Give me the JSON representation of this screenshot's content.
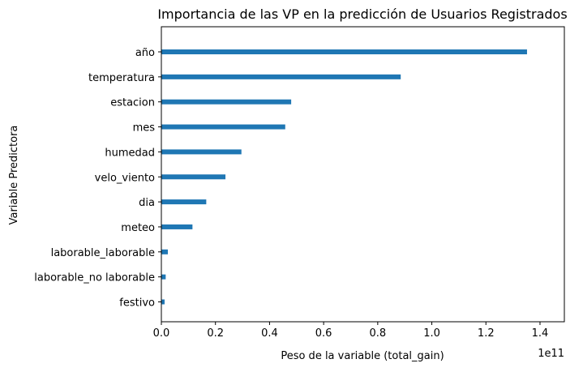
{
  "chart_data": {
    "type": "bar",
    "orientation": "horizontal",
    "title": "Importancia de las VP en la predicción de Usuarios Registrados",
    "xlabel": "Peso de la variable (total_gain)",
    "ylabel": "Variable Predictora",
    "x_offset_label": "1e11",
    "xlim": [
      0,
      1.49
    ],
    "x_ticks": [
      0,
      0.2,
      0.4,
      0.6,
      0.8,
      1.0,
      1.2,
      1.4
    ],
    "x_tick_labels": [
      "0.0",
      "0.2",
      "0.4",
      "0.6",
      "0.8",
      "1.0",
      "1.2",
      "1.4"
    ],
    "categories": [
      "año",
      "temperatura",
      "estacion",
      "mes",
      "humedad",
      "velo_viento",
      "dia",
      "meteo",
      "laborable_laborable",
      "laborable_no laborable",
      "festivo"
    ],
    "values": [
      1.352,
      0.885,
      0.48,
      0.458,
      0.296,
      0.237,
      0.166,
      0.115,
      0.024,
      0.016,
      0.012
    ],
    "grid": false,
    "bar_color": "#1f77b4"
  }
}
